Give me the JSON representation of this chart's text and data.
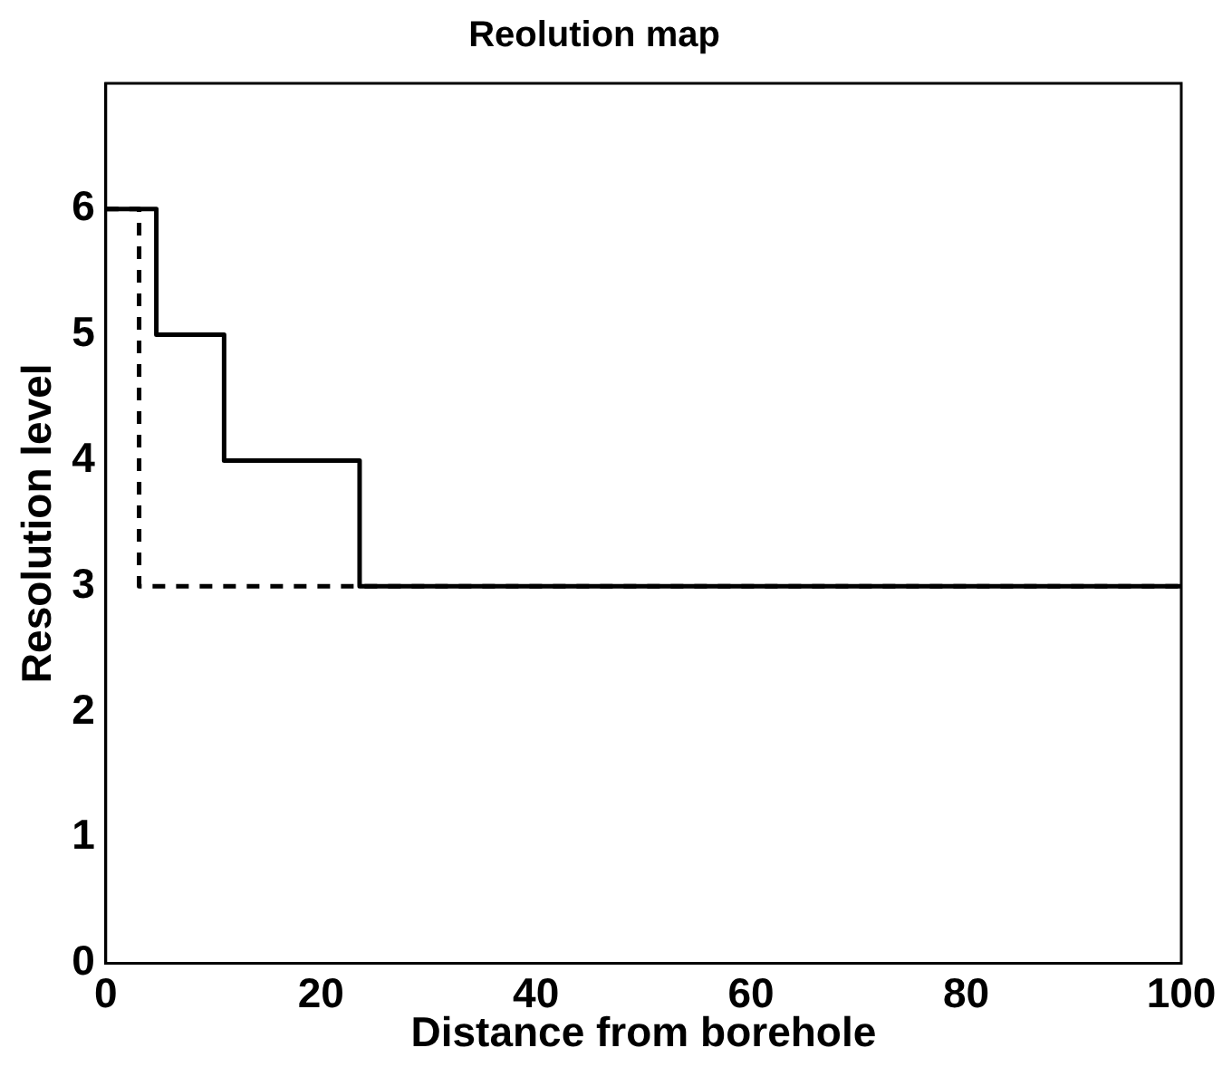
{
  "chart_data": {
    "type": "step",
    "title": "Reolution map",
    "xlabel": "Distance from borehole",
    "ylabel": "Resolution level",
    "xlim": [
      0,
      100
    ],
    "xticks": [
      0,
      20,
      40,
      60,
      80,
      100
    ],
    "ylim": [
      0,
      7
    ],
    "yticks": [
      0,
      1,
      2,
      3,
      4,
      5,
      6
    ],
    "grid": false,
    "legend": false,
    "marker": "none",
    "series": [
      {
        "color": "#000000",
        "line_style": "solid",
        "x": [
          0,
          4.7,
          11,
          23.6,
          100
        ],
        "values": [
          6,
          5,
          4,
          3,
          3
        ]
      },
      {
        "color": "#000000",
        "line_style": "dashed",
        "x": [
          0,
          3.1,
          100
        ],
        "values": [
          6,
          3,
          3
        ]
      }
    ]
  }
}
